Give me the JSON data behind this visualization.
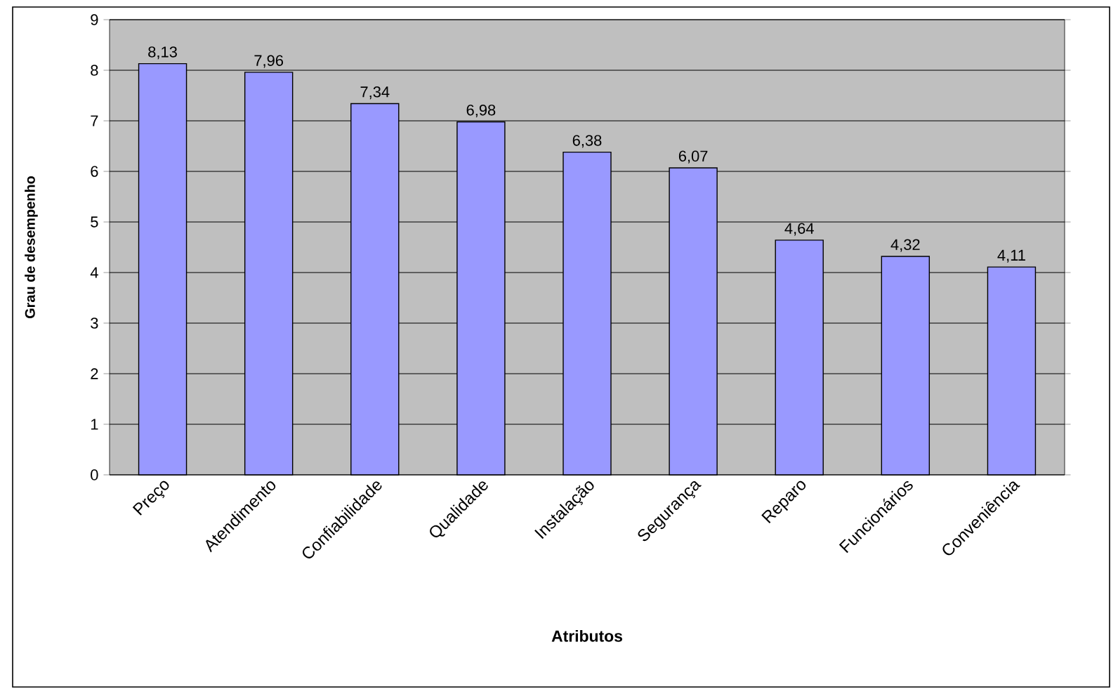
{
  "chart_data": {
    "type": "bar",
    "xlabel": "Atributos",
    "ylabel": "Grau de desempenho",
    "categories": [
      "Preço",
      "Atendimento",
      "Confiabilidade",
      "Qualidade",
      "Instalação",
      "Segurança",
      "Reparo",
      "Funcionários",
      "Conveniência"
    ],
    "values": [
      8.13,
      7.96,
      7.34,
      6.98,
      6.38,
      6.07,
      4.64,
      4.32,
      4.11
    ],
    "value_labels": [
      "8,13",
      "7,96",
      "7,34",
      "6,98",
      "6,38",
      "6,07",
      "4,64",
      "4,32",
      "4,11"
    ],
    "color": "#9999ff",
    "ylim": [
      0,
      9
    ],
    "yticks": [
      0,
      1,
      2,
      3,
      4,
      5,
      6,
      7,
      8,
      9
    ],
    "grid": "y"
  }
}
